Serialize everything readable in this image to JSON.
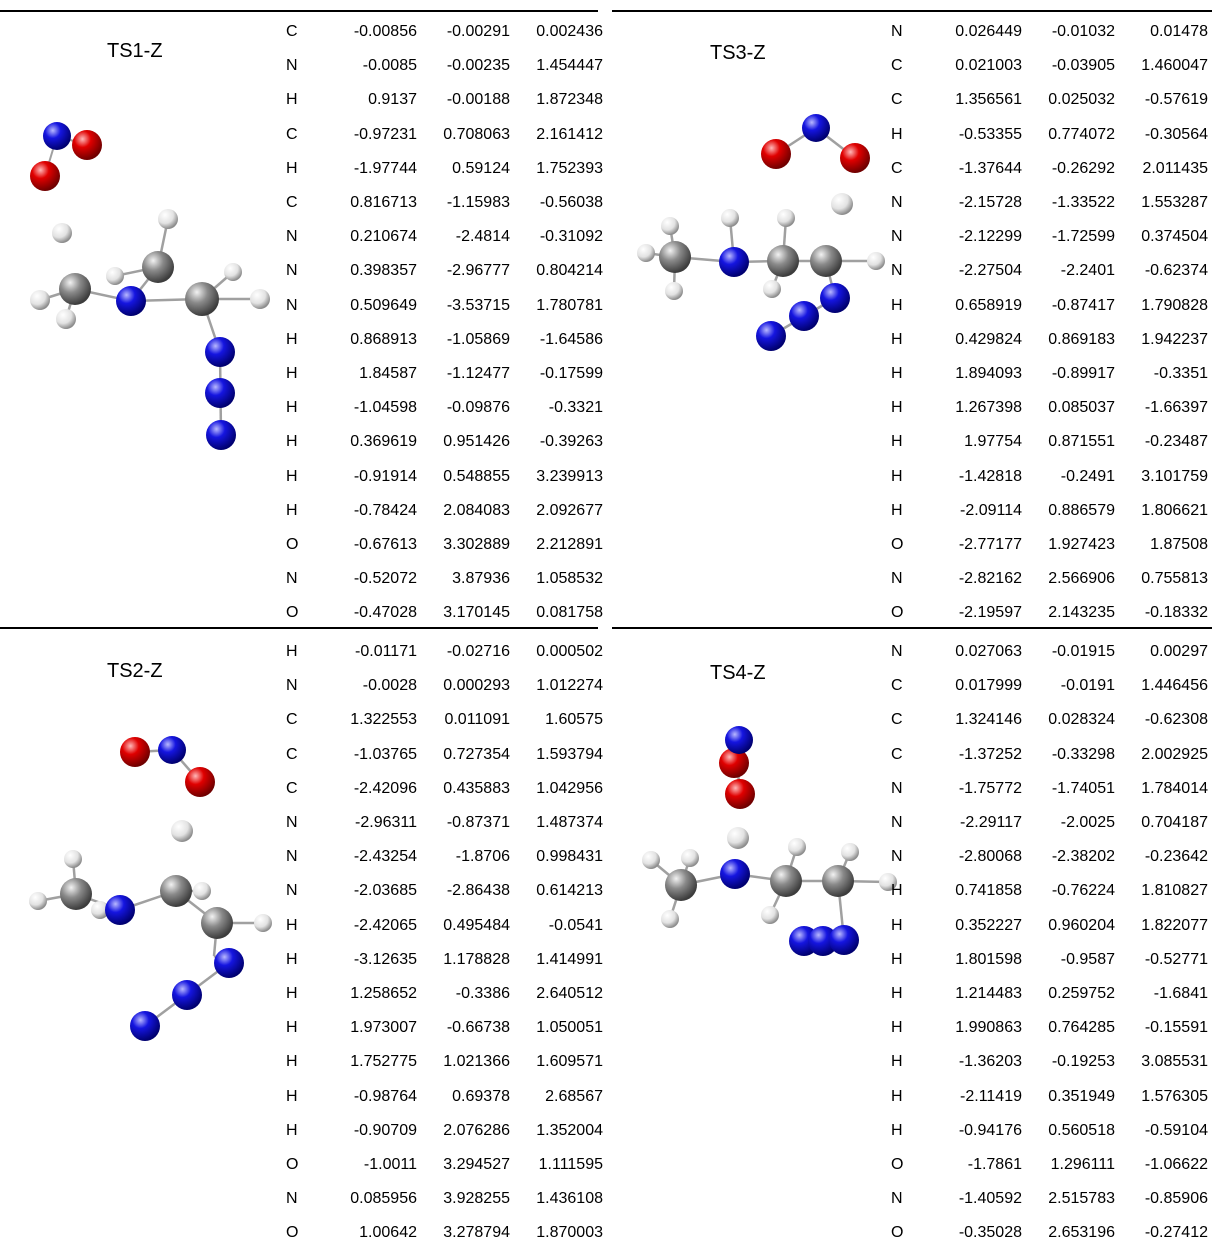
{
  "panels": [
    {
      "label": "TS1-Z",
      "atoms": [
        [
          "C",
          "-0.00856",
          "-0.00291",
          "0.002436"
        ],
        [
          "N",
          "-0.0085",
          "-0.00235",
          "1.454447"
        ],
        [
          "H",
          "0.9137",
          "-0.00188",
          "1.872348"
        ],
        [
          "C",
          "-0.97231",
          "0.708063",
          "2.161412"
        ],
        [
          "H",
          "-1.97744",
          "0.59124",
          "1.752393"
        ],
        [
          "C",
          "0.816713",
          "-1.15983",
          "-0.56038"
        ],
        [
          "N",
          "0.210674",
          "-2.4814",
          "-0.31092"
        ],
        [
          "N",
          "0.398357",
          "-2.96777",
          "0.804214"
        ],
        [
          "N",
          "0.509649",
          "-3.53715",
          "1.780781"
        ],
        [
          "H",
          "0.868913",
          "-1.05869",
          "-1.64586"
        ],
        [
          "H",
          "1.84587",
          "-1.12477",
          "-0.17599"
        ],
        [
          "H",
          "-1.04598",
          "-0.09876",
          "-0.3321"
        ],
        [
          "H",
          "0.369619",
          "0.951426",
          "-0.39263"
        ],
        [
          "H",
          "-0.91914",
          "0.548855",
          "3.239913"
        ],
        [
          "H",
          "-0.78424",
          "2.084083",
          "2.092677"
        ],
        [
          "O",
          "-0.67613",
          "3.302889",
          "2.212891"
        ],
        [
          "N",
          "-0.52072",
          "3.87936",
          "1.058532"
        ],
        [
          "O",
          "-0.47028",
          "3.170145",
          "0.081758"
        ]
      ]
    },
    {
      "label": "TS3-Z",
      "atoms": [
        [
          "N",
          "0.026449",
          "-0.01032",
          "0.01478"
        ],
        [
          "C",
          "0.021003",
          "-0.03905",
          "1.460047"
        ],
        [
          "C",
          "1.356561",
          "0.025032",
          "-0.57619"
        ],
        [
          "H",
          "-0.53355",
          "0.774072",
          "-0.30564"
        ],
        [
          "C",
          "-1.37644",
          "-0.26292",
          "2.011435"
        ],
        [
          "N",
          "-2.15728",
          "-1.33522",
          "1.553287"
        ],
        [
          "N",
          "-2.12299",
          "-1.72599",
          "0.374504"
        ],
        [
          "N",
          "-2.27504",
          "-2.2401",
          "-0.62374"
        ],
        [
          "H",
          "0.658919",
          "-0.87417",
          "1.790828"
        ],
        [
          "H",
          "0.429824",
          "0.869183",
          "1.942237"
        ],
        [
          "H",
          "1.894093",
          "-0.89917",
          "-0.3351"
        ],
        [
          "H",
          "1.267398",
          "0.085037",
          "-1.66397"
        ],
        [
          "H",
          "1.97754",
          "0.871551",
          "-0.23487"
        ],
        [
          "H",
          "-1.42818",
          "-0.2491",
          "3.101759"
        ],
        [
          "H",
          "-2.09114",
          "0.886579",
          "1.806621"
        ],
        [
          "O",
          "-2.77177",
          "1.927423",
          "1.87508"
        ],
        [
          "N",
          "-2.82162",
          "2.566906",
          "0.755813"
        ],
        [
          "O",
          "-2.19597",
          "2.143235",
          "-0.18332"
        ]
      ]
    },
    {
      "label": "TS2-Z",
      "atoms": [
        [
          "H",
          "-0.01171",
          "-0.02716",
          "0.000502"
        ],
        [
          "N",
          "-0.0028",
          "0.000293",
          "1.012274"
        ],
        [
          "C",
          "1.322553",
          "0.011091",
          "1.60575"
        ],
        [
          "C",
          "-1.03765",
          "0.727354",
          "1.593794"
        ],
        [
          "C",
          "-2.42096",
          "0.435883",
          "1.042956"
        ],
        [
          "N",
          "-2.96311",
          "-0.87371",
          "1.487374"
        ],
        [
          "N",
          "-2.43254",
          "-1.8706",
          "0.998431"
        ],
        [
          "N",
          "-2.03685",
          "-2.86438",
          "0.614213"
        ],
        [
          "H",
          "-2.42065",
          "0.495484",
          "-0.0541"
        ],
        [
          "H",
          "-3.12635",
          "1.178828",
          "1.414991"
        ],
        [
          "H",
          "1.258652",
          "-0.3386",
          "2.640512"
        ],
        [
          "H",
          "1.973007",
          "-0.66738",
          "1.050051"
        ],
        [
          "H",
          "1.752775",
          "1.021366",
          "1.609571"
        ],
        [
          "H",
          "-0.98764",
          "0.69378",
          "2.68567"
        ],
        [
          "H",
          "-0.90709",
          "2.076286",
          "1.352004"
        ],
        [
          "O",
          "-1.0011",
          "3.294527",
          "1.111595"
        ],
        [
          "N",
          "0.085956",
          "3.928255",
          "1.436108"
        ],
        [
          "O",
          "1.00642",
          "3.278794",
          "1.870003"
        ]
      ]
    },
    {
      "label": "TS4-Z",
      "atoms": [
        [
          "N",
          "0.027063",
          "-0.01915",
          "0.00297"
        ],
        [
          "C",
          "0.017999",
          "-0.0191",
          "1.446456"
        ],
        [
          "C",
          "1.324146",
          "0.028324",
          "-0.62308"
        ],
        [
          "C",
          "-1.37252",
          "-0.33298",
          "2.002925"
        ],
        [
          "N",
          "-1.75772",
          "-1.74051",
          "1.784014"
        ],
        [
          "N",
          "-2.29117",
          "-2.0025",
          "0.704187"
        ],
        [
          "N",
          "-2.80068",
          "-2.38202",
          "-0.23642"
        ],
        [
          "H",
          "0.741858",
          "-0.76224",
          "1.810827"
        ],
        [
          "H",
          "0.352227",
          "0.960204",
          "1.822077"
        ],
        [
          "H",
          "1.801598",
          "-0.9587",
          "-0.52771"
        ],
        [
          "H",
          "1.214483",
          "0.259752",
          "-1.6841"
        ],
        [
          "H",
          "1.990863",
          "0.764285",
          "-0.15591"
        ],
        [
          "H",
          "-1.36203",
          "-0.19253",
          "3.085531"
        ],
        [
          "H",
          "-2.11419",
          "0.351949",
          "1.576305"
        ],
        [
          "H",
          "-0.94176",
          "0.560518",
          "-0.59104"
        ],
        [
          "O",
          "-1.7861",
          "1.296111",
          "-1.06622"
        ],
        [
          "N",
          "-1.40592",
          "2.515783",
          "-0.85906"
        ],
        [
          "O",
          "-0.35028",
          "2.653196",
          "-0.27412"
        ]
      ]
    }
  ],
  "colors": {
    "carbon": "#808080",
    "nitrogen": "#1010d8",
    "oxygen": "#e00000",
    "hydrogen": "#e8e8e8",
    "bond": "#9a9a9a"
  }
}
